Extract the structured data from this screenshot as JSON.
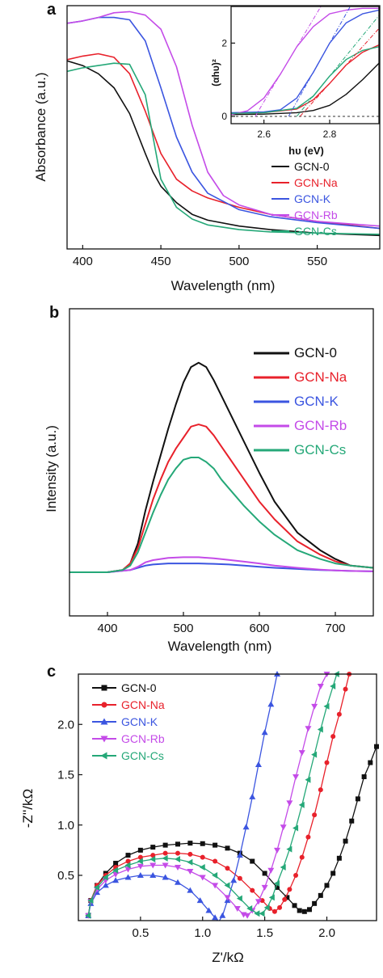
{
  "panels": {
    "a": {
      "label": "a",
      "xlabel": "Wavelength (nm)",
      "ylabel": "Absorbance (a.u.)"
    },
    "inset": {
      "xlabel": "hυ (eV)",
      "ylabel": "(αhυ)²"
    },
    "b": {
      "label": "b",
      "xlabel": "Wavelength (nm)",
      "ylabel": "Intensity (a.u.)"
    },
    "c": {
      "label": "c",
      "xlabel": "Z'/kΩ",
      "ylabel": "-Z''/kΩ"
    }
  },
  "series_colors": {
    "GCN-0": "#111111",
    "GCN-Na": "#e8212b",
    "GCN-K": "#3b55e0",
    "GCN-Rb": "#c44be8",
    "GCN-Cs": "#25a878"
  },
  "chart_data": [
    {
      "type": "line",
      "panel": "a",
      "xlabel": "Wavelength (nm)",
      "ylabel": "Absorbance (a.u.)",
      "xlim": [
        390,
        590
      ],
      "ylim": [
        0,
        1
      ],
      "xticks": [
        400,
        450,
        500,
        550
      ],
      "yticks_shown": false,
      "legend_position": "bottom-right",
      "series": [
        {
          "name": "GCN-0",
          "x": [
            390,
            400,
            410,
            420,
            430,
            440,
            445,
            450,
            460,
            470,
            480,
            500,
            520,
            550,
            590
          ],
          "y": [
            0.775,
            0.755,
            0.72,
            0.66,
            0.55,
            0.38,
            0.3,
            0.24,
            0.17,
            0.12,
            0.095,
            0.07,
            0.055,
            0.04,
            0.03
          ]
        },
        {
          "name": "GCN-Na",
          "x": [
            390,
            400,
            410,
            420,
            430,
            440,
            450,
            460,
            470,
            480,
            500,
            520,
            550,
            590
          ],
          "y": [
            0.78,
            0.795,
            0.805,
            0.79,
            0.72,
            0.56,
            0.38,
            0.27,
            0.22,
            0.19,
            0.15,
            0.12,
            0.09,
            0.06
          ]
        },
        {
          "name": "GCN-K",
          "x": [
            390,
            400,
            410,
            420,
            430,
            440,
            450,
            460,
            470,
            480,
            500,
            520,
            550,
            590
          ],
          "y": [
            0.935,
            0.945,
            0.96,
            0.96,
            0.95,
            0.86,
            0.66,
            0.45,
            0.3,
            0.21,
            0.14,
            0.11,
            0.085,
            0.06
          ]
        },
        {
          "name": "GCN-Rb",
          "x": [
            390,
            400,
            410,
            420,
            430,
            440,
            450,
            460,
            470,
            480,
            490,
            500,
            520,
            550,
            590
          ],
          "y": [
            0.935,
            0.945,
            0.96,
            0.98,
            0.985,
            0.97,
            0.91,
            0.75,
            0.5,
            0.3,
            0.2,
            0.16,
            0.12,
            0.09,
            0.07
          ]
        },
        {
          "name": "GCN-Cs",
          "x": [
            390,
            400,
            410,
            420,
            430,
            440,
            445,
            450,
            460,
            470,
            480,
            500,
            520,
            550,
            590
          ],
          "y": [
            0.73,
            0.745,
            0.755,
            0.765,
            0.76,
            0.63,
            0.45,
            0.27,
            0.15,
            0.1,
            0.075,
            0.055,
            0.045,
            0.04,
            0.035
          ]
        }
      ]
    },
    {
      "type": "line",
      "panel": "a-inset",
      "xlabel": "hυ (eV)",
      "ylabel": "(αhυ)²",
      "xlim": [
        2.5,
        2.95
      ],
      "ylim": [
        -0.2,
        3
      ],
      "xticks": [
        2.6,
        2.8
      ],
      "yticks": [
        0,
        2
      ],
      "series": [
        {
          "name": "GCN-0",
          "x": [
            2.5,
            2.6,
            2.7,
            2.75,
            2.8,
            2.85,
            2.9,
            2.95
          ],
          "y": [
            0.05,
            0.06,
            0.1,
            0.16,
            0.3,
            0.6,
            1.0,
            1.45
          ]
        },
        {
          "name": "GCN-Na",
          "x": [
            2.5,
            2.6,
            2.7,
            2.75,
            2.8,
            2.85,
            2.9,
            2.95
          ],
          "y": [
            0.08,
            0.1,
            0.2,
            0.45,
            0.9,
            1.4,
            1.75,
            1.95
          ]
        },
        {
          "name": "GCN-K",
          "x": [
            2.5,
            2.6,
            2.65,
            2.7,
            2.75,
            2.8,
            2.85,
            2.9,
            2.95
          ],
          "y": [
            0.1,
            0.12,
            0.18,
            0.5,
            1.2,
            2.0,
            2.55,
            2.8,
            2.9
          ]
        },
        {
          "name": "GCN-Rb",
          "x": [
            2.5,
            2.55,
            2.6,
            2.65,
            2.7,
            2.75,
            2.8,
            2.85,
            2.9,
            2.95
          ],
          "y": [
            0.05,
            0.15,
            0.5,
            1.15,
            1.9,
            2.45,
            2.8,
            2.9,
            2.95,
            2.95
          ]
        },
        {
          "name": "GCN-Cs",
          "x": [
            2.5,
            2.6,
            2.7,
            2.75,
            2.8,
            2.85,
            2.9,
            2.95
          ],
          "y": [
            0.08,
            0.1,
            0.22,
            0.55,
            1.1,
            1.55,
            1.8,
            1.9
          ]
        }
      ]
    },
    {
      "type": "line",
      "panel": "b",
      "xlabel": "Wavelength (nm)",
      "ylabel": "Intensity (a.u.)",
      "xlim": [
        350,
        750
      ],
      "ylim": [
        0,
        1
      ],
      "xticks": [
        400,
        500,
        600,
        700
      ],
      "yticks_shown": false,
      "legend_position": "top-right",
      "series": [
        {
          "name": "GCN-0",
          "x": [
            350,
            400,
            420,
            430,
            440,
            450,
            460,
            470,
            480,
            490,
            500,
            510,
            520,
            530,
            540,
            550,
            560,
            570,
            580,
            600,
            620,
            650,
            680,
            700,
            720,
            750
          ],
          "y": [
            0,
            0,
            0.01,
            0.04,
            0.13,
            0.28,
            0.41,
            0.53,
            0.65,
            0.76,
            0.86,
            0.93,
            0.95,
            0.93,
            0.87,
            0.8,
            0.73,
            0.66,
            0.59,
            0.45,
            0.32,
            0.18,
            0.1,
            0.06,
            0.03,
            0.02
          ]
        },
        {
          "name": "GCN-Na",
          "x": [
            350,
            400,
            420,
            430,
            440,
            450,
            460,
            470,
            480,
            490,
            500,
            510,
            520,
            530,
            540,
            550,
            560,
            570,
            580,
            600,
            620,
            650,
            680,
            700,
            720,
            750
          ],
          "y": [
            0,
            0,
            0.01,
            0.04,
            0.11,
            0.22,
            0.33,
            0.42,
            0.5,
            0.56,
            0.61,
            0.66,
            0.67,
            0.66,
            0.62,
            0.57,
            0.52,
            0.47,
            0.42,
            0.32,
            0.24,
            0.14,
            0.08,
            0.05,
            0.03,
            0.02
          ]
        },
        {
          "name": "GCN-K",
          "x": [
            350,
            400,
            430,
            440,
            450,
            460,
            480,
            500,
            520,
            540,
            560,
            580,
            600,
            620,
            650,
            680,
            700,
            720,
            750
          ],
          "y": [
            0,
            0,
            0.01,
            0.02,
            0.03,
            0.035,
            0.04,
            0.04,
            0.04,
            0.038,
            0.035,
            0.03,
            0.025,
            0.02,
            0.015,
            0.01,
            0.008,
            0.006,
            0.004
          ]
        },
        {
          "name": "GCN-Rb",
          "x": [
            350,
            400,
            430,
            440,
            450,
            460,
            480,
            500,
            520,
            540,
            560,
            580,
            600,
            620,
            650,
            680,
            700,
            720,
            750
          ],
          "y": [
            0,
            0,
            0.01,
            0.025,
            0.045,
            0.055,
            0.065,
            0.068,
            0.068,
            0.063,
            0.056,
            0.048,
            0.04,
            0.03,
            0.02,
            0.012,
            0.008,
            0.006,
            0.004
          ]
        },
        {
          "name": "GCN-Cs",
          "x": [
            350,
            400,
            420,
            430,
            440,
            450,
            460,
            470,
            480,
            490,
            500,
            510,
            520,
            530,
            540,
            550,
            560,
            570,
            580,
            600,
            620,
            650,
            680,
            700,
            720,
            750
          ],
          "y": [
            0,
            0,
            0.01,
            0.03,
            0.09,
            0.18,
            0.27,
            0.35,
            0.42,
            0.47,
            0.51,
            0.52,
            0.52,
            0.5,
            0.47,
            0.42,
            0.38,
            0.34,
            0.3,
            0.23,
            0.17,
            0.1,
            0.06,
            0.04,
            0.03,
            0.02
          ]
        }
      ]
    },
    {
      "type": "scatter",
      "panel": "c",
      "xlabel": "Z'/kΩ",
      "ylabel": "-Z''/kΩ",
      "xlim": [
        0,
        2.4
      ],
      "ylim": [
        0.05,
        2.5
      ],
      "xticks": [
        0.5,
        1.0,
        1.5,
        2.0
      ],
      "yticks": [
        0.5,
        1.0,
        1.5,
        2.0
      ],
      "legend_position": "top-left",
      "series": [
        {
          "name": "GCN-0",
          "marker": "square",
          "x": [
            0.08,
            0.1,
            0.15,
            0.22,
            0.3,
            0.4,
            0.5,
            0.6,
            0.7,
            0.8,
            0.9,
            1.0,
            1.1,
            1.2,
            1.3,
            1.4,
            1.5,
            1.6,
            1.68,
            1.74,
            1.78,
            1.82,
            1.86,
            1.9,
            1.95,
            2.0,
            2.05,
            2.1,
            2.15,
            2.2,
            2.25,
            2.3,
            2.35,
            2.4
          ],
          "y": [
            0.1,
            0.25,
            0.4,
            0.52,
            0.62,
            0.7,
            0.75,
            0.78,
            0.8,
            0.81,
            0.82,
            0.815,
            0.8,
            0.77,
            0.72,
            0.64,
            0.52,
            0.38,
            0.28,
            0.2,
            0.15,
            0.14,
            0.16,
            0.22,
            0.3,
            0.4,
            0.52,
            0.67,
            0.84,
            1.04,
            1.26,
            1.48,
            1.62,
            1.78
          ]
        },
        {
          "name": "GCN-Na",
          "marker": "circle",
          "x": [
            0.08,
            0.1,
            0.15,
            0.22,
            0.3,
            0.4,
            0.5,
            0.6,
            0.7,
            0.8,
            0.9,
            1.0,
            1.1,
            1.2,
            1.3,
            1.4,
            1.48,
            1.54,
            1.58,
            1.62,
            1.66,
            1.7,
            1.75,
            1.8,
            1.85,
            1.9,
            1.95,
            2.0,
            2.05,
            2.1,
            2.15,
            2.18
          ],
          "y": [
            0.1,
            0.25,
            0.4,
            0.5,
            0.58,
            0.64,
            0.68,
            0.7,
            0.72,
            0.72,
            0.71,
            0.68,
            0.64,
            0.57,
            0.47,
            0.35,
            0.25,
            0.17,
            0.14,
            0.18,
            0.26,
            0.36,
            0.5,
            0.68,
            0.88,
            1.1,
            1.35,
            1.62,
            1.88,
            2.1,
            2.35,
            2.5
          ]
        },
        {
          "name": "GCN-K",
          "marker": "triangle-up",
          "x": [
            0.08,
            0.1,
            0.15,
            0.22,
            0.3,
            0.4,
            0.5,
            0.6,
            0.7,
            0.8,
            0.9,
            0.98,
            1.05,
            1.1,
            1.13,
            1.16,
            1.2,
            1.25,
            1.3,
            1.35,
            1.4,
            1.45,
            1.5,
            1.55,
            1.6
          ],
          "y": [
            0.1,
            0.22,
            0.33,
            0.4,
            0.45,
            0.48,
            0.5,
            0.5,
            0.48,
            0.43,
            0.35,
            0.25,
            0.15,
            0.08,
            0.04,
            0.1,
            0.25,
            0.45,
            0.7,
            0.98,
            1.28,
            1.6,
            1.92,
            2.2,
            2.5
          ]
        },
        {
          "name": "GCN-Rb",
          "marker": "triangle-down",
          "x": [
            0.08,
            0.1,
            0.15,
            0.22,
            0.3,
            0.4,
            0.5,
            0.6,
            0.7,
            0.8,
            0.9,
            1.0,
            1.1,
            1.2,
            1.28,
            1.33,
            1.36,
            1.4,
            1.45,
            1.5,
            1.55,
            1.6,
            1.65,
            1.7,
            1.75,
            1.8,
            1.85,
            1.9,
            1.95,
            2.0
          ],
          "y": [
            0.1,
            0.24,
            0.36,
            0.45,
            0.51,
            0.56,
            0.59,
            0.6,
            0.6,
            0.58,
            0.54,
            0.48,
            0.4,
            0.28,
            0.17,
            0.11,
            0.1,
            0.15,
            0.24,
            0.38,
            0.55,
            0.75,
            0.98,
            1.22,
            1.48,
            1.72,
            1.96,
            2.18,
            2.38,
            2.5
          ]
        },
        {
          "name": "GCN-Cs",
          "marker": "triangle-left",
          "x": [
            0.08,
            0.1,
            0.15,
            0.22,
            0.3,
            0.4,
            0.5,
            0.6,
            0.7,
            0.8,
            0.9,
            1.0,
            1.1,
            1.2,
            1.3,
            1.38,
            1.44,
            1.48,
            1.52,
            1.56,
            1.6,
            1.65,
            1.7,
            1.75,
            1.8,
            1.85,
            1.9,
            1.95,
            2.0,
            2.05,
            2.08
          ],
          "y": [
            0.1,
            0.25,
            0.38,
            0.48,
            0.55,
            0.6,
            0.64,
            0.66,
            0.67,
            0.66,
            0.63,
            0.58,
            0.5,
            0.4,
            0.27,
            0.17,
            0.12,
            0.12,
            0.18,
            0.28,
            0.42,
            0.58,
            0.76,
            0.97,
            1.2,
            1.45,
            1.7,
            1.95,
            2.18,
            2.38,
            2.5
          ]
        }
      ]
    }
  ]
}
